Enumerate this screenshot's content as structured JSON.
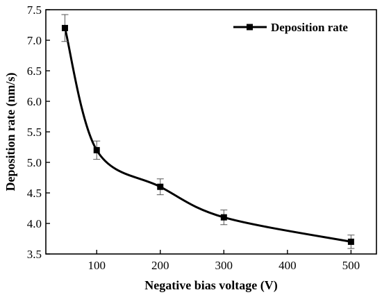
{
  "chart_data": {
    "type": "line",
    "xlabel": "Negative bias voltage (V)",
    "ylabel": "Deposition rate (nm/s)",
    "xlim": [
      20,
      540
    ],
    "ylim": [
      3.5,
      7.5
    ],
    "x_ticks": [
      100,
      200,
      300,
      400,
      500
    ],
    "y_ticks": [
      3.5,
      4.0,
      4.5,
      5.0,
      5.5,
      6.0,
      6.5,
      7.0,
      7.5
    ],
    "x_tick_labels": [
      "100",
      "200",
      "300",
      "400",
      "500"
    ],
    "y_tick_labels": [
      "3.5",
      "4.0",
      "4.5",
      "5.0",
      "5.5",
      "6.0",
      "6.5",
      "7.0",
      "7.5"
    ],
    "grid": false,
    "legend_position": "top-right",
    "series": [
      {
        "name": "Deposition rate",
        "marker": "square",
        "color": "#000000",
        "x": [
          50,
          100,
          200,
          300,
          500
        ],
        "y": [
          7.2,
          5.2,
          4.6,
          4.1,
          3.7
        ],
        "error": [
          0.22,
          0.15,
          0.13,
          0.12,
          0.11
        ]
      }
    ]
  }
}
